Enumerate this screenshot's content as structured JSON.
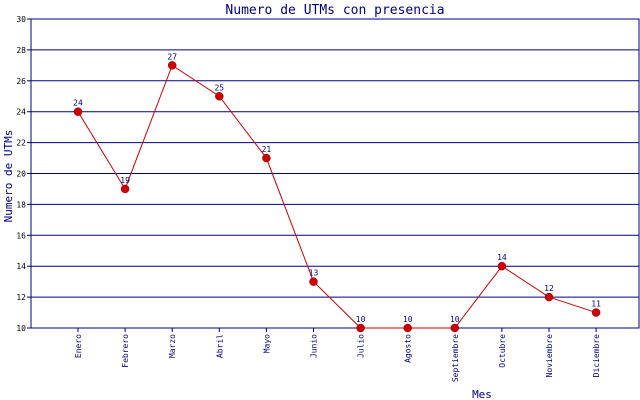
{
  "chart_data": {
    "type": "line",
    "title": "Numero de UTMs con presencia",
    "xlabel": "Mes",
    "ylabel": "Numero de UTMs",
    "categories": [
      "Enero",
      "Febrero",
      "Marzo",
      "Abril",
      "Mayo",
      "Junio",
      "Julio",
      "Agosto",
      "Septiembre",
      "Octubre",
      "Noviembre",
      "Diciembre"
    ],
    "values": [
      24,
      19,
      27,
      25,
      21,
      13,
      10,
      10,
      10,
      14,
      12,
      11
    ],
    "ylim": [
      10,
      30
    ],
    "yticks": [
      10,
      12,
      14,
      16,
      18,
      20,
      22,
      24,
      26,
      28,
      30
    ],
    "grid": "horizontal",
    "colors": {
      "line": "#cc0000",
      "marker": "#cc0000",
      "grid": "#000080",
      "frame": "#000080",
      "text": "#000080"
    }
  }
}
